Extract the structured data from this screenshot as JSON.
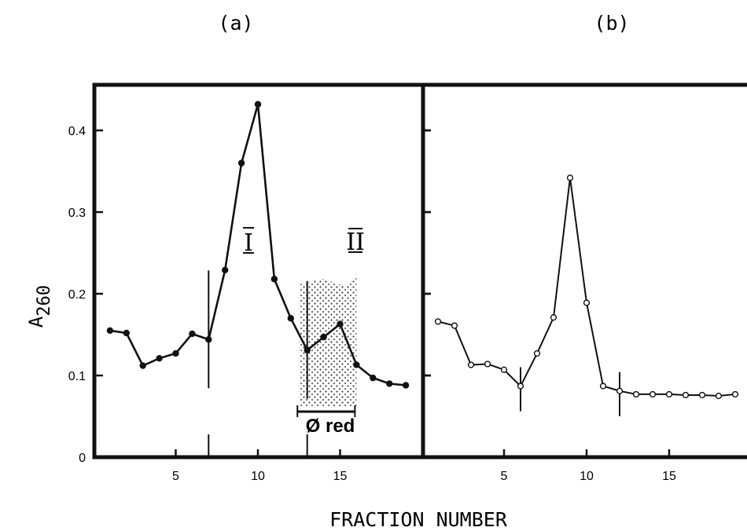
{
  "figure": {
    "xlabel": "FRACTION NUMBER",
    "ylabel_base": "A",
    "ylabel_sub": "260"
  },
  "chart_data": [
    {
      "type": "line",
      "panel_label": "(a)",
      "xlabel": "FRACTION NUMBER",
      "ylabel": "A260",
      "xlim": [
        0,
        20
      ],
      "ylim": [
        0,
        0.45
      ],
      "x_ticks": [
        5,
        10,
        15
      ],
      "y_ticks": [
        0,
        0.1,
        0.2,
        0.3,
        0.4
      ],
      "y_tick_labels": [
        "0",
        "0.1",
        "0.2",
        "0.3",
        "0.4"
      ],
      "marker": "filled-circle",
      "series": [
        {
          "x": [
            1,
            2,
            3,
            4,
            5,
            6,
            7,
            8,
            9,
            10,
            11,
            12,
            13,
            14,
            15,
            16,
            17,
            18,
            19
          ],
          "y": [
            0.155,
            0.152,
            0.112,
            0.121,
            0.127,
            0.151,
            0.144,
            0.229,
            0.36,
            0.432,
            0.218,
            0.17,
            0.131,
            0.147,
            0.163,
            0.113,
            0.097,
            0.09,
            0.088
          ]
        }
      ],
      "vertical_markers": [
        7,
        13
      ],
      "annotations": [
        "I",
        "II",
        "Ø red"
      ],
      "shaded_region": [
        12.5,
        16
      ]
    },
    {
      "type": "line",
      "panel_label": "(b)",
      "xlabel": "FRACTION NUMBER",
      "ylabel": "A260",
      "xlim": [
        0,
        20
      ],
      "ylim": [
        0,
        0.45
      ],
      "x_ticks": [
        5,
        10,
        15
      ],
      "marker": "open-circle",
      "series": [
        {
          "x": [
            1,
            2,
            3,
            4,
            5,
            6,
            7,
            8,
            9,
            10,
            11,
            12,
            13,
            14,
            15,
            16,
            17,
            18,
            19
          ],
          "y": [
            0.166,
            0.161,
            0.113,
            0.114,
            0.107,
            0.087,
            0.127,
            0.171,
            0.342,
            0.189,
            0.087,
            0.081,
            0.077,
            0.077,
            0.077,
            0.076,
            0.076,
            0.075,
            0.077
          ]
        }
      ],
      "vertical_markers": [
        6,
        12
      ]
    }
  ]
}
